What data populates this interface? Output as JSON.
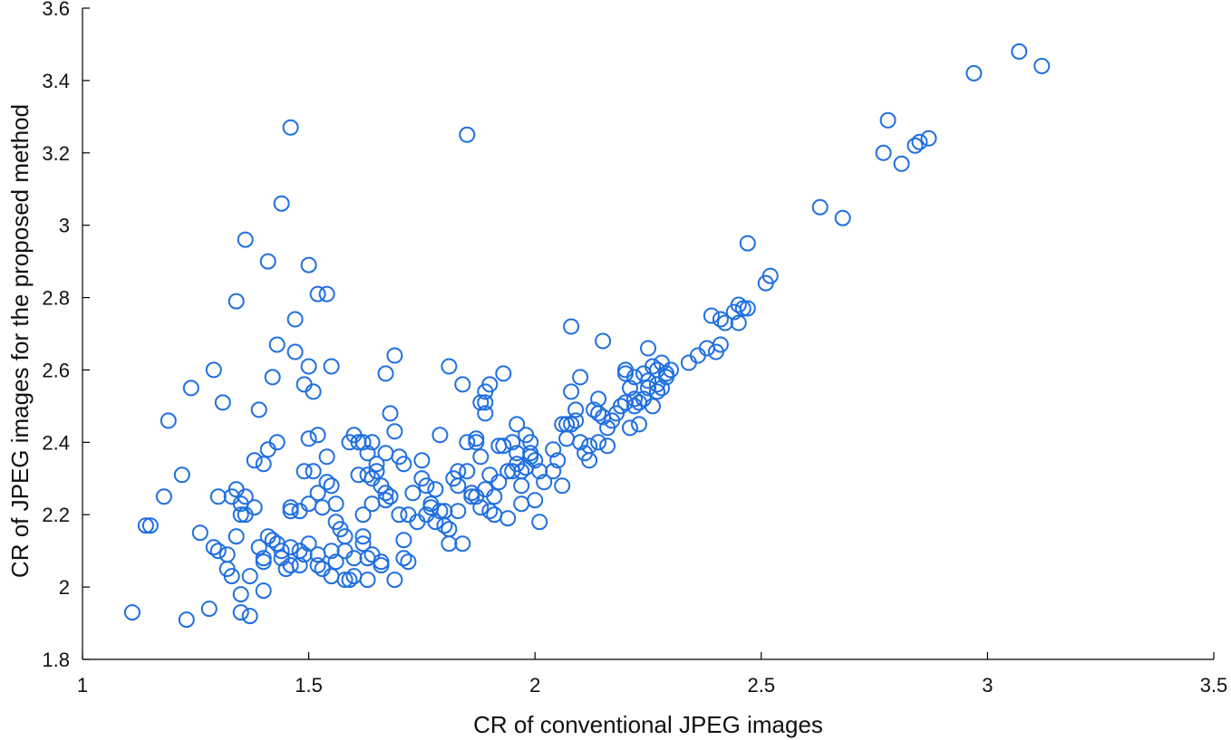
{
  "chart_data": {
    "type": "scatter",
    "title": "",
    "xlabel": "CR of conventional JPEG images",
    "ylabel": "CR of JPEG images for the proposed method",
    "xlim": [
      1,
      3.5
    ],
    "ylim": [
      1.8,
      3.6
    ],
    "xticks": [
      "1",
      "1.5",
      "2",
      "2.5",
      "3",
      "3.5"
    ],
    "yticks": [
      "1.8",
      "2",
      "2.2",
      "2.4",
      "2.6",
      "2.8",
      "3",
      "3.2",
      "3.4",
      "3.6"
    ],
    "grid": false,
    "marker": "open-circle",
    "marker_color": "#1f6fe0",
    "series": [
      {
        "points": [
          [
            1.11,
            1.93
          ],
          [
            1.14,
            2.17
          ],
          [
            1.15,
            2.17
          ],
          [
            1.18,
            2.25
          ],
          [
            1.19,
            2.46
          ],
          [
            1.22,
            2.31
          ],
          [
            1.23,
            1.91
          ],
          [
            1.24,
            2.55
          ],
          [
            1.26,
            2.15
          ],
          [
            1.28,
            1.94
          ],
          [
            1.29,
            2.11
          ],
          [
            1.29,
            2.6
          ],
          [
            1.3,
            2.1
          ],
          [
            1.3,
            2.25
          ],
          [
            1.31,
            2.51
          ],
          [
            1.32,
            2.05
          ],
          [
            1.32,
            2.09
          ],
          [
            1.33,
            2.03
          ],
          [
            1.33,
            2.25
          ],
          [
            1.34,
            2.79
          ],
          [
            1.34,
            2.27
          ],
          [
            1.34,
            2.14
          ],
          [
            1.35,
            1.98
          ],
          [
            1.35,
            2.23
          ],
          [
            1.35,
            2.2
          ],
          [
            1.35,
            1.93
          ],
          [
            1.36,
            2.25
          ],
          [
            1.36,
            2.2
          ],
          [
            1.36,
            2.96
          ],
          [
            1.37,
            1.92
          ],
          [
            1.37,
            2.03
          ],
          [
            1.38,
            2.22
          ],
          [
            1.38,
            2.35
          ],
          [
            1.39,
            2.11
          ],
          [
            1.39,
            2.49
          ],
          [
            1.4,
            2.34
          ],
          [
            1.4,
            2.08
          ],
          [
            1.4,
            2.07
          ],
          [
            1.4,
            1.99
          ],
          [
            1.41,
            2.38
          ],
          [
            1.41,
            2.9
          ],
          [
            1.41,
            2.14
          ],
          [
            1.42,
            2.58
          ],
          [
            1.42,
            2.13
          ],
          [
            1.43,
            2.4
          ],
          [
            1.43,
            2.12
          ],
          [
            1.43,
            2.67
          ],
          [
            1.44,
            3.06
          ],
          [
            1.44,
            2.08
          ],
          [
            1.44,
            2.1
          ],
          [
            1.45,
            2.05
          ],
          [
            1.46,
            2.21
          ],
          [
            1.46,
            2.22
          ],
          [
            1.46,
            3.27
          ],
          [
            1.46,
            2.06
          ],
          [
            1.46,
            2.11
          ],
          [
            1.47,
            2.74
          ],
          [
            1.47,
            2.65
          ],
          [
            1.48,
            2.1
          ],
          [
            1.48,
            2.06
          ],
          [
            1.48,
            2.21
          ],
          [
            1.49,
            2.56
          ],
          [
            1.49,
            2.32
          ],
          [
            1.49,
            2.09
          ],
          [
            1.5,
            2.41
          ],
          [
            1.5,
            2.23
          ],
          [
            1.5,
            2.12
          ],
          [
            1.5,
            2.89
          ],
          [
            1.5,
            2.61
          ],
          [
            1.51,
            2.32
          ],
          [
            1.51,
            2.54
          ],
          [
            1.52,
            2.09
          ],
          [
            1.52,
            2.81
          ],
          [
            1.52,
            2.42
          ],
          [
            1.52,
            2.26
          ],
          [
            1.52,
            2.06
          ],
          [
            1.53,
            2.05
          ],
          [
            1.53,
            2.22
          ],
          [
            1.54,
            2.81
          ],
          [
            1.54,
            2.36
          ],
          [
            1.54,
            2.29
          ],
          [
            1.55,
            2.61
          ],
          [
            1.55,
            2.28
          ],
          [
            1.55,
            2.1
          ],
          [
            1.55,
            2.03
          ],
          [
            1.56,
            2.23
          ],
          [
            1.56,
            2.18
          ],
          [
            1.56,
            2.07
          ],
          [
            1.57,
            2.16
          ],
          [
            1.58,
            2.14
          ],
          [
            1.58,
            2.1
          ],
          [
            1.58,
            2.02
          ],
          [
            1.59,
            2.02
          ],
          [
            1.59,
            2.4
          ],
          [
            1.6,
            2.42
          ],
          [
            1.6,
            2.08
          ],
          [
            1.6,
            2.03
          ],
          [
            1.61,
            2.4
          ],
          [
            1.61,
            2.31
          ],
          [
            1.62,
            2.4
          ],
          [
            1.62,
            2.2
          ],
          [
            1.62,
            2.14
          ],
          [
            1.62,
            2.12
          ],
          [
            1.63,
            2.37
          ],
          [
            1.63,
            2.31
          ],
          [
            1.63,
            2.08
          ],
          [
            1.63,
            2.02
          ],
          [
            1.64,
            2.4
          ],
          [
            1.64,
            2.3
          ],
          [
            1.64,
            2.23
          ],
          [
            1.64,
            2.09
          ],
          [
            1.65,
            2.32
          ],
          [
            1.65,
            2.34
          ],
          [
            1.66,
            2.07
          ],
          [
            1.66,
            2.06
          ],
          [
            1.66,
            2.28
          ],
          [
            1.67,
            2.24
          ],
          [
            1.67,
            2.37
          ],
          [
            1.67,
            2.26
          ],
          [
            1.67,
            2.59
          ],
          [
            1.68,
            2.48
          ],
          [
            1.68,
            2.25
          ],
          [
            1.69,
            2.64
          ],
          [
            1.69,
            2.43
          ],
          [
            1.69,
            2.02
          ],
          [
            1.7,
            2.36
          ],
          [
            1.7,
            2.2
          ],
          [
            1.71,
            2.34
          ],
          [
            1.71,
            2.13
          ],
          [
            1.71,
            2.08
          ],
          [
            1.72,
            2.07
          ],
          [
            1.72,
            2.2
          ],
          [
            1.73,
            2.26
          ],
          [
            1.74,
            2.18
          ],
          [
            1.75,
            2.35
          ],
          [
            1.75,
            2.3
          ],
          [
            1.76,
            2.2
          ],
          [
            1.76,
            2.28
          ],
          [
            1.77,
            2.22
          ],
          [
            1.77,
            2.23
          ],
          [
            1.78,
            2.18
          ],
          [
            1.78,
            2.27
          ],
          [
            1.79,
            2.42
          ],
          [
            1.79,
            2.21
          ],
          [
            1.8,
            2.21
          ],
          [
            1.8,
            2.17
          ],
          [
            1.81,
            2.12
          ],
          [
            1.81,
            2.61
          ],
          [
            1.81,
            2.16
          ],
          [
            1.82,
            2.3
          ],
          [
            1.83,
            2.21
          ],
          [
            1.83,
            2.28
          ],
          [
            1.83,
            2.32
          ],
          [
            1.84,
            2.12
          ],
          [
            1.84,
            2.56
          ],
          [
            1.85,
            2.4
          ],
          [
            1.85,
            2.32
          ],
          [
            1.85,
            3.25
          ],
          [
            1.86,
            2.26
          ],
          [
            1.86,
            2.25
          ],
          [
            1.87,
            2.25
          ],
          [
            1.87,
            2.41
          ],
          [
            1.87,
            2.4
          ],
          [
            1.88,
            2.51
          ],
          [
            1.88,
            2.36
          ],
          [
            1.88,
            2.22
          ],
          [
            1.89,
            2.51
          ],
          [
            1.89,
            2.54
          ],
          [
            1.89,
            2.27
          ],
          [
            1.89,
            2.48
          ],
          [
            1.9,
            2.56
          ],
          [
            1.9,
            2.31
          ],
          [
            1.9,
            2.21
          ],
          [
            1.91,
            2.2
          ],
          [
            1.91,
            2.25
          ],
          [
            1.92,
            2.39
          ],
          [
            1.92,
            2.29
          ],
          [
            1.93,
            2.59
          ],
          [
            1.93,
            2.39
          ],
          [
            1.94,
            2.19
          ],
          [
            1.94,
            2.32
          ],
          [
            1.95,
            2.32
          ],
          [
            1.95,
            2.4
          ],
          [
            1.96,
            2.45
          ],
          [
            1.96,
            2.34
          ],
          [
            1.96,
            2.37
          ],
          [
            1.97,
            2.32
          ],
          [
            1.97,
            2.23
          ],
          [
            1.97,
            2.28
          ],
          [
            1.98,
            2.42
          ],
          [
            1.98,
            2.33
          ],
          [
            1.99,
            2.37
          ],
          [
            1.99,
            2.36
          ],
          [
            1.99,
            2.4
          ],
          [
            2.0,
            2.35
          ],
          [
            2.0,
            2.24
          ],
          [
            2.01,
            2.32
          ],
          [
            2.01,
            2.18
          ],
          [
            2.02,
            2.29
          ],
          [
            2.04,
            2.32
          ],
          [
            2.04,
            2.38
          ],
          [
            2.05,
            2.35
          ],
          [
            2.06,
            2.28
          ],
          [
            2.06,
            2.45
          ],
          [
            2.07,
            2.45
          ],
          [
            2.07,
            2.41
          ],
          [
            2.08,
            2.54
          ],
          [
            2.08,
            2.45
          ],
          [
            2.08,
            2.72
          ],
          [
            2.09,
            2.49
          ],
          [
            2.09,
            2.46
          ],
          [
            2.1,
            2.4
          ],
          [
            2.1,
            2.58
          ],
          [
            2.11,
            2.37
          ],
          [
            2.12,
            2.35
          ],
          [
            2.12,
            2.39
          ],
          [
            2.13,
            2.49
          ],
          [
            2.14,
            2.4
          ],
          [
            2.14,
            2.52
          ],
          [
            2.14,
            2.48
          ],
          [
            2.15,
            2.68
          ],
          [
            2.15,
            2.47
          ],
          [
            2.16,
            2.44
          ],
          [
            2.16,
            2.39
          ],
          [
            2.17,
            2.46
          ],
          [
            2.18,
            2.48
          ],
          [
            2.19,
            2.5
          ],
          [
            2.2,
            2.6
          ],
          [
            2.2,
            2.59
          ],
          [
            2.2,
            2.51
          ],
          [
            2.21,
            2.44
          ],
          [
            2.21,
            2.55
          ],
          [
            2.22,
            2.52
          ],
          [
            2.22,
            2.5
          ],
          [
            2.22,
            2.58
          ],
          [
            2.23,
            2.45
          ],
          [
            2.23,
            2.51
          ],
          [
            2.24,
            2.52
          ],
          [
            2.24,
            2.59
          ],
          [
            2.25,
            2.57
          ],
          [
            2.25,
            2.66
          ],
          [
            2.25,
            2.55
          ],
          [
            2.26,
            2.61
          ],
          [
            2.26,
            2.5
          ],
          [
            2.27,
            2.54
          ],
          [
            2.27,
            2.56
          ],
          [
            2.27,
            2.6
          ],
          [
            2.28,
            2.55
          ],
          [
            2.28,
            2.62
          ],
          [
            2.29,
            2.59
          ],
          [
            2.29,
            2.58
          ],
          [
            2.3,
            2.6
          ],
          [
            2.34,
            2.62
          ],
          [
            2.36,
            2.64
          ],
          [
            2.38,
            2.66
          ],
          [
            2.39,
            2.75
          ],
          [
            2.4,
            2.65
          ],
          [
            2.41,
            2.67
          ],
          [
            2.41,
            2.74
          ],
          [
            2.42,
            2.73
          ],
          [
            2.44,
            2.76
          ],
          [
            2.45,
            2.73
          ],
          [
            2.45,
            2.78
          ],
          [
            2.46,
            2.77
          ],
          [
            2.47,
            2.95
          ],
          [
            2.47,
            2.77
          ],
          [
            2.51,
            2.84
          ],
          [
            2.52,
            2.86
          ],
          [
            2.63,
            3.05
          ],
          [
            2.68,
            3.02
          ],
          [
            2.77,
            3.2
          ],
          [
            2.78,
            3.29
          ],
          [
            2.81,
            3.17
          ],
          [
            2.84,
            3.22
          ],
          [
            2.85,
            3.23
          ],
          [
            2.87,
            3.24
          ],
          [
            2.97,
            3.42
          ],
          [
            3.07,
            3.48
          ],
          [
            3.12,
            3.44
          ]
        ]
      }
    ]
  }
}
